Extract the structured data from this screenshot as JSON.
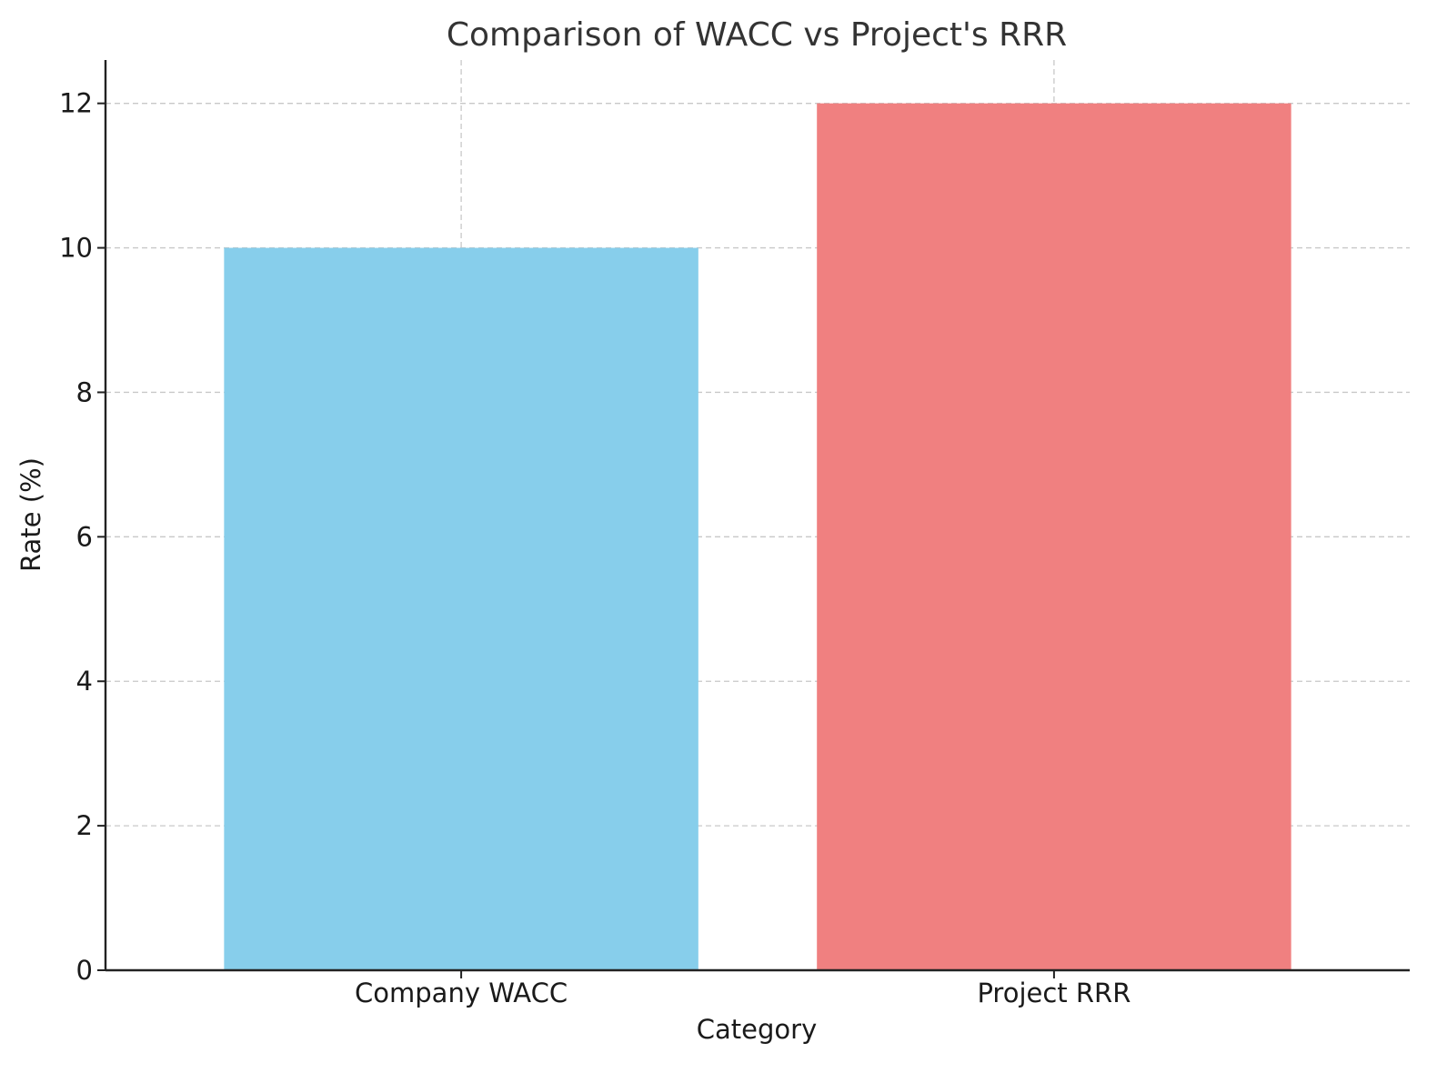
{
  "chart_data": {
    "type": "bar",
    "title": "Comparison of WACC vs Project's RRR",
    "xlabel": "Category",
    "ylabel": "Rate (%)",
    "categories": [
      "Company WACC",
      "Project RRR"
    ],
    "values": [
      10,
      12
    ],
    "colors": [
      "#87ceeb",
      "#f08080"
    ],
    "ylim": [
      0,
      12.6
    ],
    "yticks": [
      0,
      2,
      4,
      6,
      8,
      10,
      12
    ],
    "grid": true,
    "grid_style": "dashed"
  }
}
